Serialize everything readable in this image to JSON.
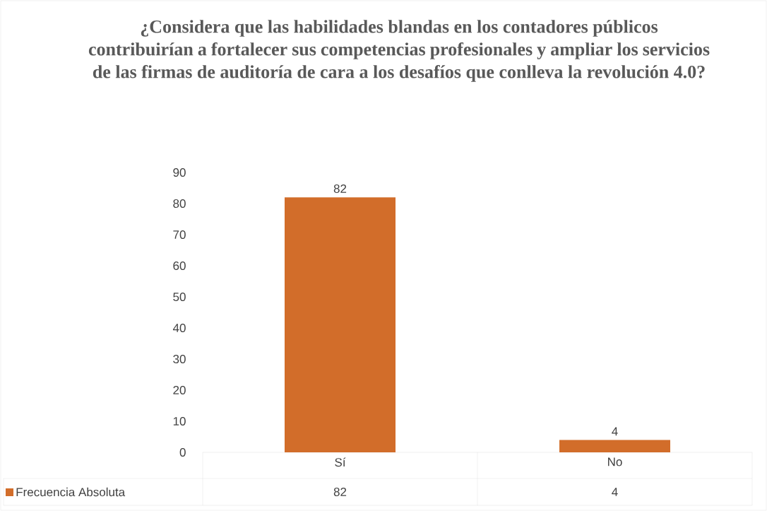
{
  "chart_data": {
    "type": "bar",
    "title": "¿Considera que las habilidades blandas en los contadores públicos contribuirían a fortalecer sus competencias profesionales y ampliar los servicios de las firmas de auditoría de cara a los desafíos que conlleva la revolución 4.0?",
    "categories": [
      "Sí",
      "No"
    ],
    "series": [
      {
        "name": "Frecuencia Absoluta",
        "color": "#d26d2a",
        "values": [
          82,
          4
        ],
        "value_labels": [
          "82",
          "4"
        ]
      }
    ],
    "ylim": [
      0,
      90
    ],
    "yticks": [
      0,
      10,
      20,
      30,
      40,
      50,
      60,
      70,
      80,
      90
    ],
    "legend": "bottom",
    "grid": false
  }
}
